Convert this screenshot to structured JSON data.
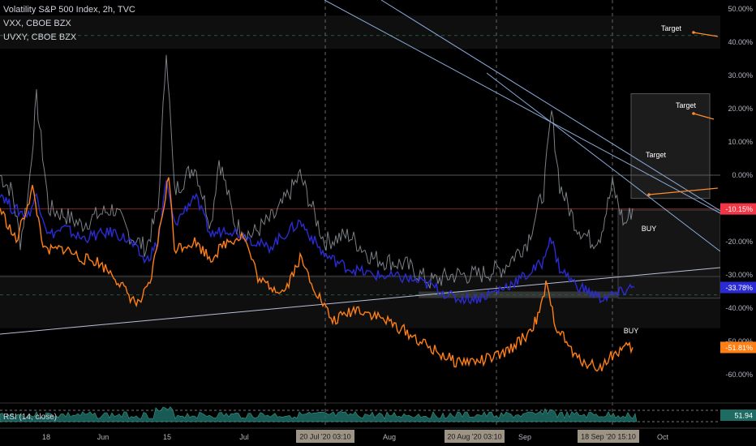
{
  "legend": {
    "main": "Volatility S&P 500 Index, 2h, TVC",
    "vxx": "VXX, CBOE BZX",
    "uvxy": "UVXY, CBOE BZX"
  },
  "rsi_label": "RSI (14, close)",
  "rsi_value": "51.94",
  "annotations": {
    "target": "Target",
    "buy": "BUY"
  },
  "price_badges": [
    {
      "text": "-10.15%",
      "color": "#f23645",
      "y": -10.15
    },
    {
      "text": "-33.78%",
      "color": "#2b2bd6",
      "y": -33.78
    },
    {
      "text": "-51.81%",
      "color": "#ff7f15",
      "y": -51.81
    }
  ],
  "date_badges": [
    "20 Jul '20  03:10",
    "20 Aug '20  03:10",
    "18 Sep '20  15:10"
  ],
  "chart_data": {
    "type": "line",
    "y_axis": {
      "unit": "%",
      "range": [
        -65,
        50
      ],
      "ticks": [
        50,
        40,
        30,
        20,
        10,
        0,
        -10,
        -20,
        -30,
        -40,
        -50,
        -60
      ],
      "tick_labels": [
        "50.00%",
        "40.00%",
        "30.00%",
        "20.00%",
        "10.00%",
        "0.00%",
        "-10.00%",
        "-20.00%",
        "-30.00%",
        "-40.00%",
        "-50.00%",
        "-60.00%"
      ]
    },
    "x_axis": {
      "tick_labels": [
        "18",
        "Jun",
        "15",
        "Jul",
        "Aug",
        "Sep",
        "Oct"
      ]
    },
    "series": [
      {
        "color": "#9aa0a6",
        "points": [
          [
            0,
            0
          ],
          [
            15,
            -5
          ],
          [
            25,
            -20
          ],
          [
            35,
            -5
          ],
          [
            45,
            23
          ],
          [
            60,
            -10
          ],
          [
            80,
            -12
          ],
          [
            100,
            -15
          ],
          [
            120,
            -12
          ],
          [
            140,
            -10
          ],
          [
            160,
            -18
          ],
          [
            180,
            -22
          ],
          [
            195,
            -10
          ],
          [
            205,
            39
          ],
          [
            215,
            -5
          ],
          [
            240,
            3
          ],
          [
            260,
            -15
          ],
          [
            270,
            5
          ],
          [
            290,
            -15
          ],
          [
            310,
            -18
          ],
          [
            340,
            -12
          ],
          [
            370,
            0
          ],
          [
            400,
            -20
          ],
          [
            430,
            -18
          ],
          [
            460,
            -25
          ],
          [
            500,
            -27
          ],
          [
            530,
            -32
          ],
          [
            560,
            -30
          ],
          [
            590,
            -30
          ],
          [
            620,
            -28
          ],
          [
            650,
            -20
          ],
          [
            670,
            -5
          ],
          [
            680,
            19
          ],
          [
            690,
            -3
          ],
          [
            710,
            -15
          ],
          [
            730,
            -20
          ],
          [
            740,
            -18
          ],
          [
            755,
            -3
          ],
          [
            770,
            -15
          ],
          [
            780,
            -10
          ]
        ]
      },
      {
        "color": "#2b2bd6",
        "points": [
          [
            0,
            -5
          ],
          [
            15,
            -10
          ],
          [
            35,
            -12
          ],
          [
            45,
            -6
          ],
          [
            60,
            -18
          ],
          [
            80,
            -16
          ],
          [
            100,
            -19
          ],
          [
            120,
            -18
          ],
          [
            140,
            -17
          ],
          [
            160,
            -20
          ],
          [
            180,
            -26
          ],
          [
            195,
            -20
          ],
          [
            205,
            -2
          ],
          [
            215,
            -15
          ],
          [
            240,
            -6
          ],
          [
            260,
            -18
          ],
          [
            280,
            -16
          ],
          [
            300,
            -18
          ],
          [
            330,
            -22
          ],
          [
            370,
            -14
          ],
          [
            400,
            -24
          ],
          [
            430,
            -28
          ],
          [
            460,
            -30
          ],
          [
            500,
            -31
          ],
          [
            530,
            -33
          ],
          [
            560,
            -37
          ],
          [
            590,
            -37
          ],
          [
            620,
            -34
          ],
          [
            650,
            -30
          ],
          [
            670,
            -26
          ],
          [
            678,
            -18
          ],
          [
            690,
            -28
          ],
          [
            710,
            -33
          ],
          [
            740,
            -37
          ],
          [
            760,
            -36
          ],
          [
            775,
            -34
          ],
          [
            782,
            -33.78
          ]
        ]
      },
      {
        "color": "#ff7f15",
        "points": [
          [
            0,
            -10
          ],
          [
            20,
            -20
          ],
          [
            40,
            -4
          ],
          [
            55,
            -23
          ],
          [
            80,
            -22
          ],
          [
            100,
            -25
          ],
          [
            120,
            -26
          ],
          [
            140,
            -30
          ],
          [
            155,
            -35
          ],
          [
            170,
            -39
          ],
          [
            185,
            -33
          ],
          [
            200,
            -12
          ],
          [
            208,
            0
          ],
          [
            215,
            -22
          ],
          [
            240,
            -20
          ],
          [
            260,
            -25
          ],
          [
            280,
            -20
          ],
          [
            300,
            -18
          ],
          [
            320,
            -32
          ],
          [
            350,
            -35
          ],
          [
            370,
            -25
          ],
          [
            390,
            -35
          ],
          [
            410,
            -44
          ],
          [
            440,
            -40
          ],
          [
            470,
            -43
          ],
          [
            500,
            -47
          ],
          [
            530,
            -52
          ],
          [
            560,
            -56
          ],
          [
            590,
            -56
          ],
          [
            620,
            -54
          ],
          [
            650,
            -48
          ],
          [
            665,
            -42
          ],
          [
            673,
            -33
          ],
          [
            685,
            -45
          ],
          [
            710,
            -55
          ],
          [
            740,
            -58
          ],
          [
            755,
            -54
          ],
          [
            770,
            -52
          ],
          [
            780,
            -51.81
          ]
        ]
      }
    ]
  }
}
